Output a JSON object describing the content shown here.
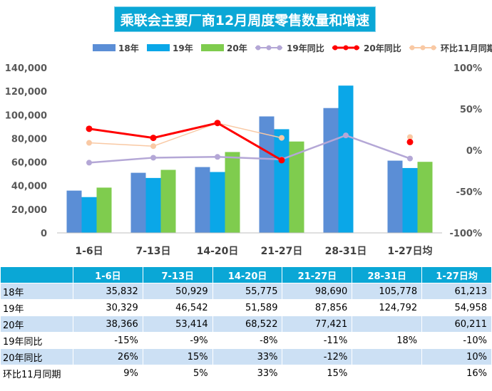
{
  "chart_data": {
    "type": "bar",
    "title": "乘联会主要厂商12月周度零售数量和增速",
    "categories": [
      "1-6日",
      "7-13日",
      "14-20日",
      "21-27日",
      "28-31日",
      "1-27日均"
    ],
    "y_ticks": [
      "0",
      "20,000",
      "40,000",
      "60,000",
      "80,000",
      "100,000",
      "120,000",
      "140,000"
    ],
    "y2_ticks": [
      "-100%",
      "-50%",
      "0%",
      "50%",
      "100%"
    ],
    "ylim": [
      0,
      140000
    ],
    "y2lim": [
      -100,
      100
    ],
    "legend_position": "top",
    "bar_series": [
      {
        "name": "18年",
        "color": "#5B8ED6",
        "values": [
          35832,
          50929,
          55775,
          98690,
          105778,
          61213
        ]
      },
      {
        "name": "19年",
        "color": "#0AA7E8",
        "values": [
          30329,
          46542,
          51589,
          87856,
          124792,
          54958
        ]
      },
      {
        "name": "20年",
        "color": "#7FCC4E",
        "values": [
          38366,
          53414,
          68522,
          77421,
          null,
          60211
        ]
      }
    ],
    "line_series": [
      {
        "name": "19年同比",
        "color": "#B4A7D6",
        "values": [
          -15,
          -9,
          -8,
          -11,
          18,
          -10
        ]
      },
      {
        "name": "20年同比",
        "color": "#FF0000",
        "values": [
          26,
          15,
          33,
          -12,
          null,
          10
        ]
      },
      {
        "name": "环比11月同期",
        "color": "#F9C9A4",
        "values": [
          9,
          5,
          33,
          15,
          null,
          16
        ]
      }
    ]
  },
  "table": {
    "headers": [
      "",
      "1-6日",
      "7-13日",
      "14-20日",
      "21-27日",
      "28-31日",
      "1-27日均"
    ],
    "rows": [
      {
        "label": "18年",
        "cells": [
          "35,832",
          "50,929",
          "55,775",
          "98,690",
          "105,778",
          "61,213"
        ]
      },
      {
        "label": "19年",
        "cells": [
          "30,329",
          "46,542",
          "51,589",
          "87,856",
          "124,792",
          "54,958"
        ]
      },
      {
        "label": "20年",
        "cells": [
          "38,366",
          "53,414",
          "68,522",
          "77,421",
          "",
          "60,211"
        ]
      },
      {
        "label": "19年同比",
        "cells": [
          "-15%",
          "-9%",
          "-8%",
          "-11%",
          "18%",
          "-10%"
        ]
      },
      {
        "label": "20年同比",
        "cells": [
          "26%",
          "15%",
          "33%",
          "-12%",
          "",
          "10%"
        ]
      },
      {
        "label": "环比11月同期",
        "cells": [
          "9%",
          "5%",
          "33%",
          "15%",
          "",
          "16%"
        ]
      }
    ]
  }
}
